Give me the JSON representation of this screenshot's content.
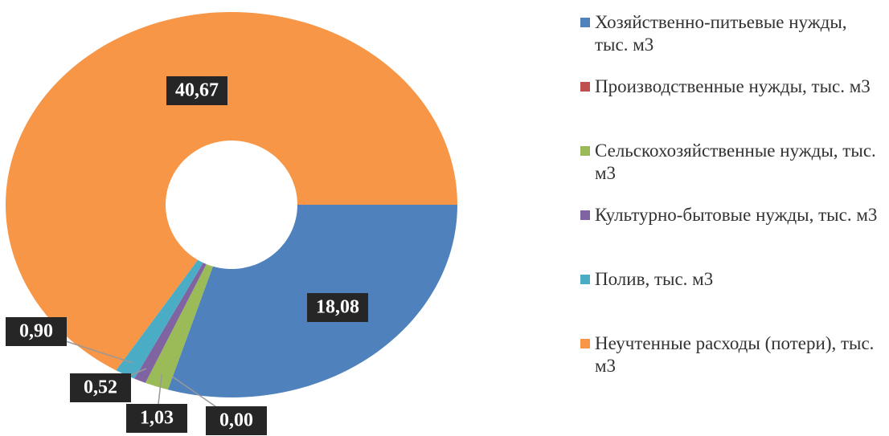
{
  "chart_data": {
    "type": "donut",
    "categories": [
      "Хозяйственно-питьевые нужды, тыс. м3",
      "Производственные нужды, тыс. м3",
      "Сельскохозяйственные нужды, тыс. м3",
      "Культурно-бытовые нужды, тыс. м3",
      "Полив, тыс. м3",
      "Неучтенные расходы (потери), тыс. м3"
    ],
    "values": [
      18.08,
      0.0,
      1.03,
      0.52,
      0.9,
      40.67
    ],
    "value_labels": [
      "18,08",
      "0,00",
      "1,03",
      "0,52",
      "0,90",
      "40,67"
    ],
    "colors": [
      "#4f81bd",
      "#c0504d",
      "#9bbb59",
      "#8064a2",
      "#4bacc6",
      "#f79646"
    ],
    "legend": "right"
  }
}
